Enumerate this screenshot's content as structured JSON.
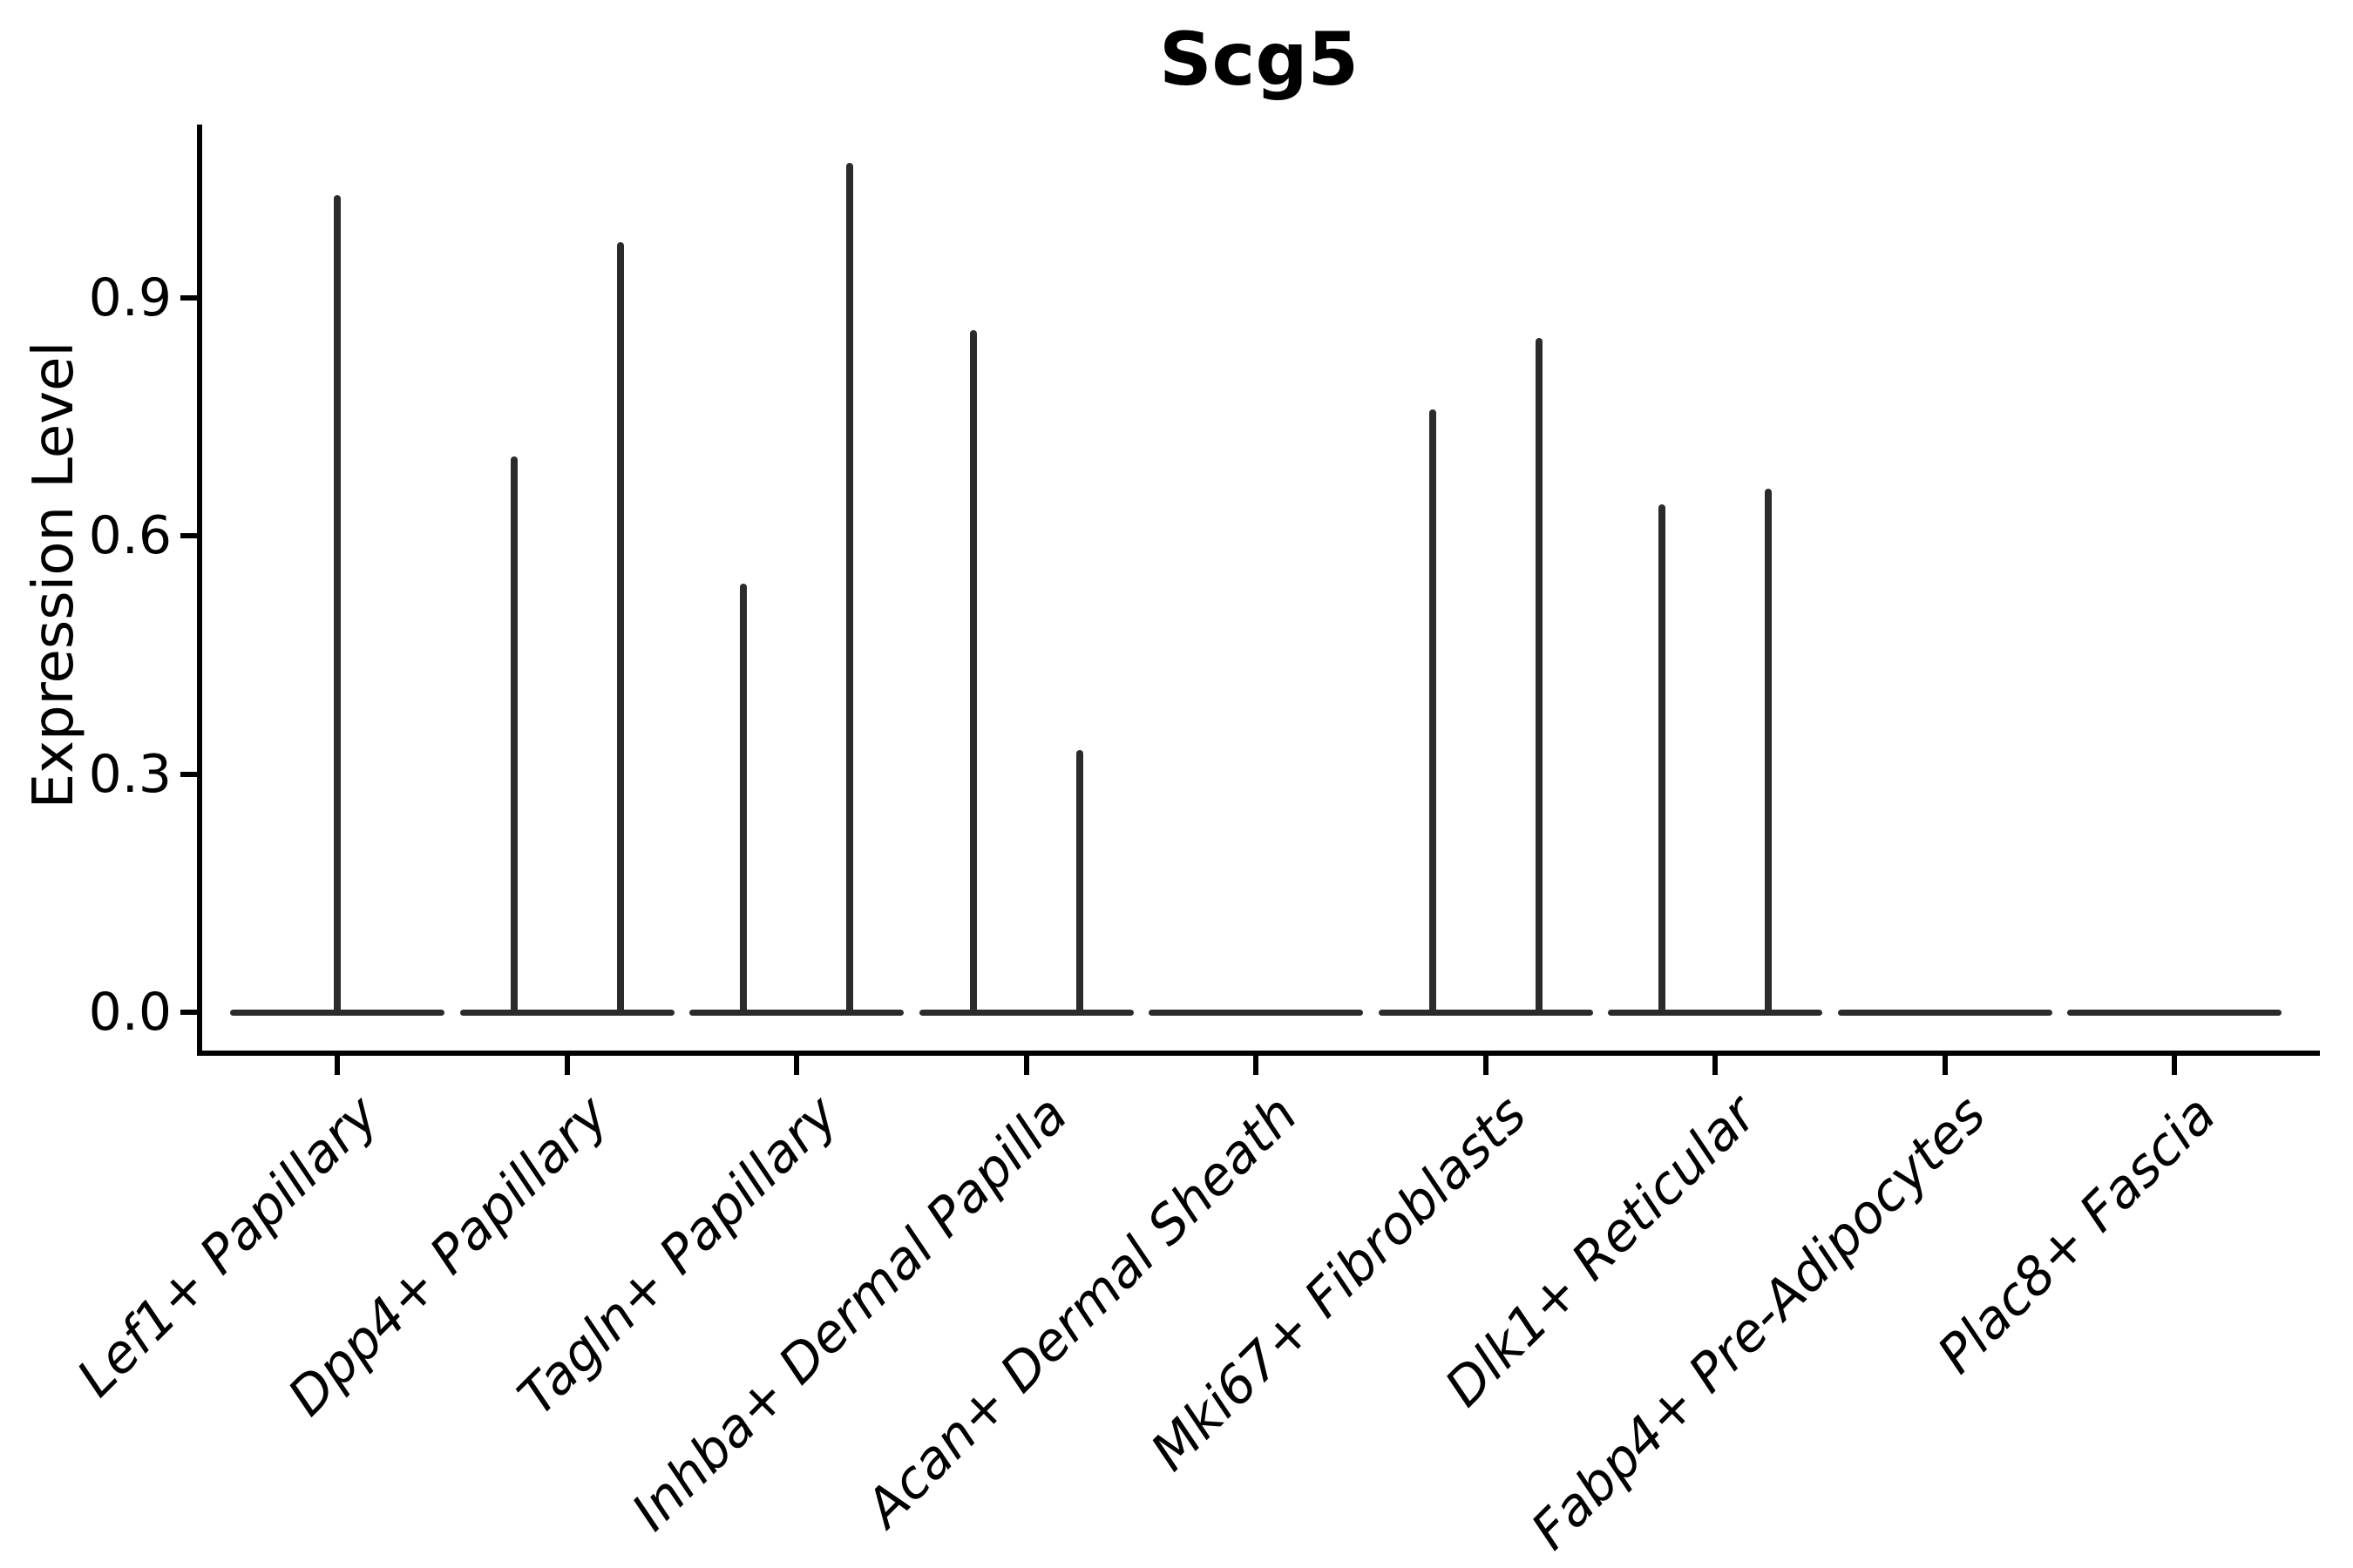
{
  "chart_data": {
    "type": "violin",
    "title": "Scg5",
    "xlabel": "",
    "ylabel": "Expression Level",
    "yticks": [
      "0.0",
      "0.3",
      "0.6",
      "0.9"
    ],
    "ylim": [
      0.0,
      1.12
    ],
    "grid": false,
    "legend": "none",
    "categories": [
      "Lef1+ Papillary",
      "Dpp4+ Papillary",
      "Tagln+ Papillary",
      "Inhba+ Dermal Papilla",
      "Acan+ Dermal Sheath",
      "Mki67+ Fibroblasts",
      "Dlk1+ Reticular",
      "Fabp4+ Pre-Adipocytes",
      "Plac8+ Fascia"
    ],
    "violins": [
      {
        "category": "Lef1+ Papillary",
        "spikes": [
          {
            "pos": "center",
            "max": 1.03
          }
        ]
      },
      {
        "category": "Dpp4+ Papillary",
        "spikes": [
          {
            "pos": "left",
            "max": 0.7
          },
          {
            "pos": "right",
            "max": 0.97
          }
        ]
      },
      {
        "category": "Tagln+ Papillary",
        "spikes": [
          {
            "pos": "left",
            "max": 0.54
          },
          {
            "pos": "right",
            "max": 1.07
          }
        ]
      },
      {
        "category": "Inhba+ Dermal Papilla",
        "spikes": [
          {
            "pos": "left",
            "max": 0.86
          },
          {
            "pos": "right",
            "max": 0.33
          }
        ]
      },
      {
        "category": "Acan+ Dermal Sheath",
        "spikes": []
      },
      {
        "category": "Mki67+ Fibroblasts",
        "spikes": [
          {
            "pos": "left",
            "max": 0.76
          },
          {
            "pos": "right",
            "max": 0.85
          }
        ]
      },
      {
        "category": "Dlk1+ Reticular",
        "spikes": [
          {
            "pos": "left",
            "max": 0.64
          },
          {
            "pos": "right",
            "max": 0.66
          }
        ]
      },
      {
        "category": "Fabp4+ Pre-Adipocytes",
        "spikes": []
      },
      {
        "category": "Plac8+ Fascia",
        "spikes": []
      }
    ],
    "colors": {
      "violin": "#2b2b2b",
      "axis": "#000000",
      "text": "#000000",
      "background": "#ffffff"
    }
  }
}
